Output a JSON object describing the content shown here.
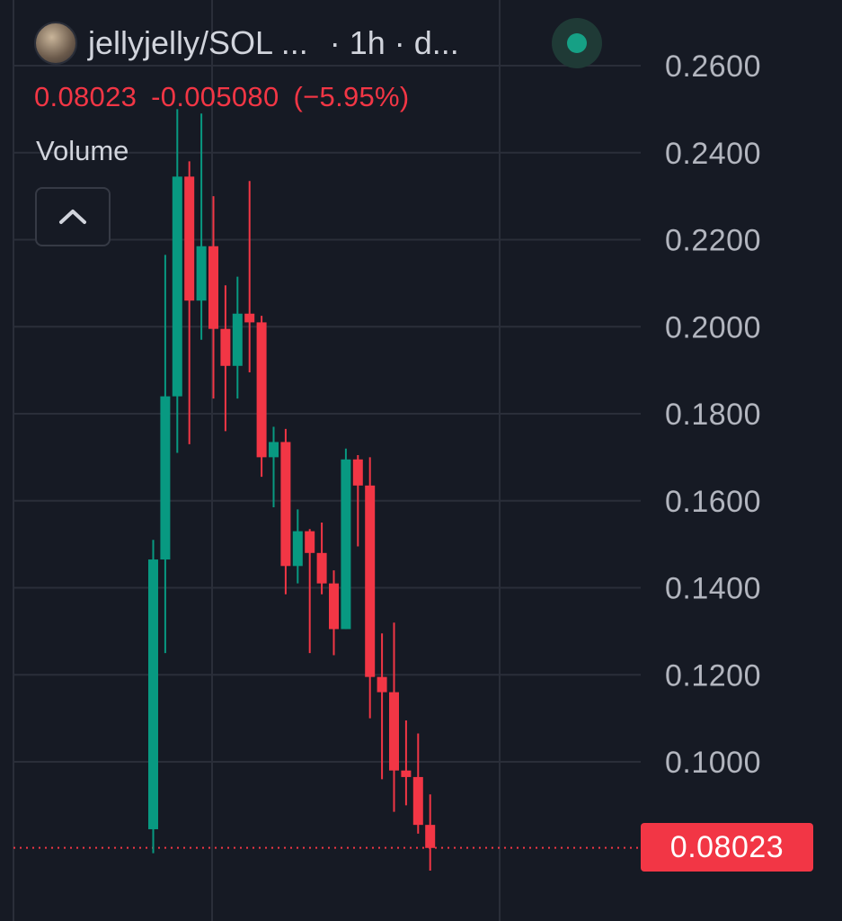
{
  "header": {
    "avatar_icon": "token-avatar-icon",
    "symbol": "jellyjelly/SOL ...",
    "interval": "· 1h · d...",
    "status_icon": "market-open-dot-icon",
    "status_color": "#16a085"
  },
  "quote": {
    "last": "0.08023",
    "change": "-0.005080",
    "change_percent": "(−5.95%)",
    "color": "#f23645"
  },
  "indicators": {
    "volume_label": "Volume",
    "collapse_icon": "chevron-up-icon"
  },
  "colors": {
    "background": "#161a24",
    "up": "#089981",
    "down": "#f23645",
    "grid": "#2a2e39",
    "axis_text": "#b2b5be"
  },
  "chart_data": {
    "type": "candlestick",
    "title": "",
    "xlabel": "",
    "ylabel": "",
    "ylim": [
      0.07,
      0.26
    ],
    "y_ticks": [
      "0.2600",
      "0.2400",
      "0.2200",
      "0.2000",
      "0.1800",
      "0.1600",
      "0.1400",
      "0.1200",
      "0.1000"
    ],
    "grid": true,
    "last_price": 0.08023,
    "last_price_label": "0.08023",
    "candles": [
      {
        "o": 0.0845,
        "h": 0.151,
        "l": 0.079,
        "c": 0.1465
      },
      {
        "o": 0.1465,
        "h": 0.2165,
        "l": 0.125,
        "c": 0.184
      },
      {
        "o": 0.184,
        "h": 0.25,
        "l": 0.171,
        "c": 0.2345
      },
      {
        "o": 0.2345,
        "h": 0.238,
        "l": 0.173,
        "c": 0.206
      },
      {
        "o": 0.206,
        "h": 0.249,
        "l": 0.197,
        "c": 0.2185
      },
      {
        "o": 0.2185,
        "h": 0.23,
        "l": 0.1835,
        "c": 0.1995
      },
      {
        "o": 0.1995,
        "h": 0.2095,
        "l": 0.176,
        "c": 0.191
      },
      {
        "o": 0.191,
        "h": 0.2115,
        "l": 0.1835,
        "c": 0.203
      },
      {
        "o": 0.203,
        "h": 0.2335,
        "l": 0.1895,
        "c": 0.201
      },
      {
        "o": 0.201,
        "h": 0.2025,
        "l": 0.1655,
        "c": 0.17
      },
      {
        "o": 0.17,
        "h": 0.177,
        "l": 0.1585,
        "c": 0.1735
      },
      {
        "o": 0.1735,
        "h": 0.1765,
        "l": 0.1385,
        "c": 0.145
      },
      {
        "o": 0.145,
        "h": 0.158,
        "l": 0.141,
        "c": 0.153
      },
      {
        "o": 0.153,
        "h": 0.1535,
        "l": 0.125,
        "c": 0.148
      },
      {
        "o": 0.148,
        "h": 0.155,
        "l": 0.1385,
        "c": 0.141
      },
      {
        "o": 0.141,
        "h": 0.144,
        "l": 0.1245,
        "c": 0.1305
      },
      {
        "o": 0.1305,
        "h": 0.172,
        "l": 0.1305,
        "c": 0.1695
      },
      {
        "o": 0.1695,
        "h": 0.1705,
        "l": 0.1495,
        "c": 0.1635
      },
      {
        "o": 0.1635,
        "h": 0.17,
        "l": 0.11,
        "c": 0.1195
      },
      {
        "o": 0.1195,
        "h": 0.1295,
        "l": 0.096,
        "c": 0.116
      },
      {
        "o": 0.116,
        "h": 0.132,
        "l": 0.0885,
        "c": 0.098
      },
      {
        "o": 0.098,
        "h": 0.1095,
        "l": 0.09,
        "c": 0.0965
      },
      {
        "o": 0.0965,
        "h": 0.1065,
        "l": 0.0835,
        "c": 0.0855
      },
      {
        "o": 0.0855,
        "h": 0.0925,
        "l": 0.075,
        "c": 0.0802
      }
    ]
  }
}
